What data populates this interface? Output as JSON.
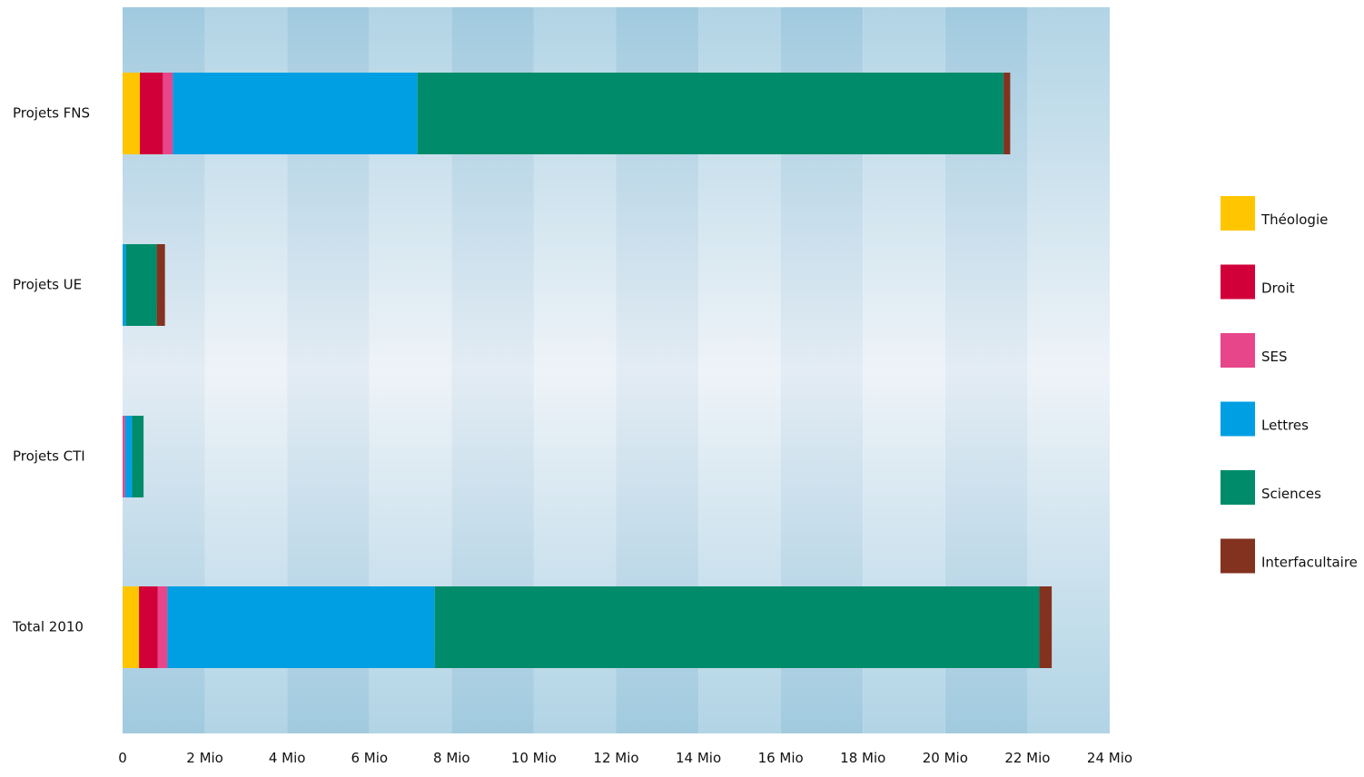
{
  "chart_data": {
    "type": "bar",
    "orientation": "horizontal",
    "stacked": true,
    "title": "",
    "xlabel": "",
    "ylabel": "",
    "xlim": [
      0,
      24000000
    ],
    "x_ticks": [
      {
        "value": 0,
        "label": "0"
      },
      {
        "value": 2000000,
        "label": "2 Mio"
      },
      {
        "value": 4000000,
        "label": "4 Mio"
      },
      {
        "value": 6000000,
        "label": "6 Mio"
      },
      {
        "value": 8000000,
        "label": "8 Mio"
      },
      {
        "value": 10000000,
        "label": "10 Mio"
      },
      {
        "value": 12000000,
        "label": "12 Mio"
      },
      {
        "value": 14000000,
        "label": "14 Mio"
      },
      {
        "value": 16000000,
        "label": "16 Mio"
      },
      {
        "value": 18000000,
        "label": "18 Mio"
      },
      {
        "value": 20000000,
        "label": "20 Mio"
      },
      {
        "value": 22000000,
        "label": "22 Mio"
      },
      {
        "value": 24000000,
        "label": "24 Mio"
      }
    ],
    "categories": [
      "Projets FNS",
      "Projets UE",
      "Projets CTI",
      "Total 2010"
    ],
    "series": [
      {
        "name": "Théologie",
        "color": "#FFC600",
        "values": [
          420000,
          0,
          0,
          400000
        ]
      },
      {
        "name": "Droit",
        "color": "#D20039",
        "values": [
          560000,
          0,
          0,
          450000
        ]
      },
      {
        "name": "SES",
        "color": "#E8468A",
        "values": [
          240000,
          0,
          60000,
          240000
        ]
      },
      {
        "name": "Lettres",
        "color": "#009FE3",
        "values": [
          5950000,
          80000,
          170000,
          6500000
        ]
      },
      {
        "name": "Sciences",
        "color": "#008C6A",
        "values": [
          14250000,
          750000,
          280000,
          14700000
        ]
      },
      {
        "name": "Interfacultaire",
        "color": "#833220",
        "values": [
          160000,
          200000,
          0,
          300000
        ]
      }
    ],
    "legend": {
      "position": "right"
    },
    "grid": "alternating vertical bands"
  }
}
